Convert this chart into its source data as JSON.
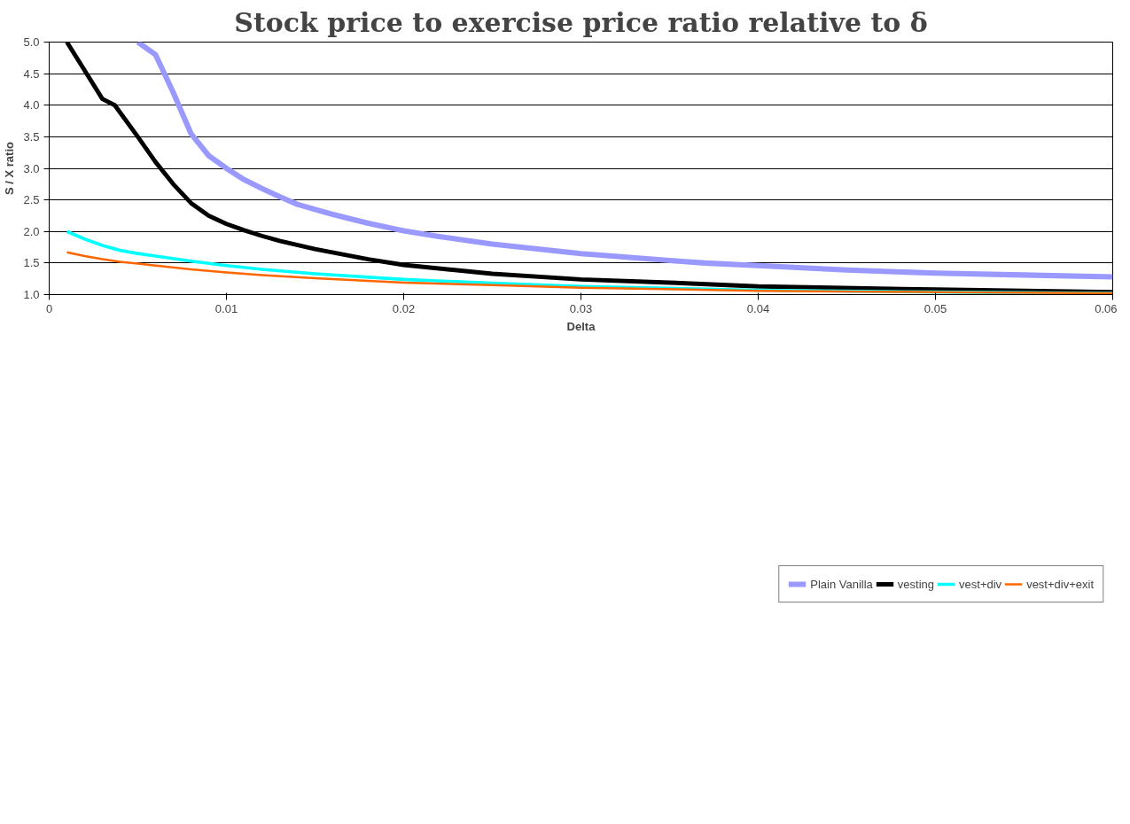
{
  "chart_data": {
    "type": "line",
    "title": "Stock price to exercise price ratio relative to δ",
    "xlabel": "Delta",
    "ylabel": "S / X ratio",
    "xlim": [
      0,
      0.06
    ],
    "xticks": [
      0,
      0.01,
      0.02,
      0.03,
      0.04,
      0.05,
      0.06
    ],
    "ylim": [
      1.0,
      5.0
    ],
    "yticks": [
      {
        "value": 1.0,
        "label": "1.0"
      },
      1.5,
      {
        "value": 2.0,
        "label": "2.0"
      },
      2.5,
      {
        "value": 3.0,
        "label": "3.0"
      },
      3.5,
      {
        "value": 4.0,
        "label": "4.0"
      },
      4.5,
      {
        "value": 5.0,
        "label": "5.0"
      }
    ],
    "grid": "y",
    "legend": "bottom",
    "marker": "none",
    "line_style": "solid",
    "series": [
      {
        "name": "Plain Vanilla",
        "color": "#9999ff",
        "x": [
          0.005,
          0.006,
          0.007,
          0.008,
          0.009,
          0.01,
          0.011,
          0.012,
          0.013,
          0.014,
          0.015,
          0.016,
          0.018,
          0.02,
          0.022,
          0.025,
          0.03,
          0.035,
          0.037,
          0.04,
          0.045,
          0.05,
          0.055,
          0.06
        ],
        "values": [
          5.0,
          4.8,
          4.2,
          3.55,
          3.2,
          3.0,
          2.82,
          2.68,
          2.55,
          2.43,
          2.35,
          2.27,
          2.13,
          2.01,
          1.92,
          1.8,
          1.65,
          1.54,
          1.5,
          1.46,
          1.39,
          1.34,
          1.31,
          1.28
        ]
      },
      {
        "name": "vesting",
        "color": "#000000",
        "x": [
          0.001,
          0.002,
          0.003,
          0.0037,
          0.005,
          0.006,
          0.007,
          0.008,
          0.009,
          0.01,
          0.011,
          0.012,
          0.013,
          0.015,
          0.018,
          0.02,
          0.025,
          0.03,
          0.035,
          0.04,
          0.05,
          0.06
        ],
        "values": [
          5.0,
          4.55,
          4.1,
          4.0,
          3.5,
          3.1,
          2.75,
          2.45,
          2.25,
          2.12,
          2.02,
          1.93,
          1.85,
          1.72,
          1.56,
          1.47,
          1.33,
          1.24,
          1.19,
          1.13,
          1.08,
          1.04
        ]
      },
      {
        "name": "vest+div",
        "color": "#00ffff",
        "x": [
          0.001,
          0.002,
          0.003,
          0.004,
          0.005,
          0.006,
          0.008,
          0.01,
          0.012,
          0.015,
          0.02,
          0.025,
          0.03,
          0.04,
          0.05,
          0.06
        ],
        "values": [
          2.0,
          1.88,
          1.78,
          1.7,
          1.65,
          1.61,
          1.53,
          1.46,
          1.4,
          1.33,
          1.24,
          1.18,
          1.13,
          1.07,
          1.04,
          1.02
        ]
      },
      {
        "name": "vest+div+exit",
        "color": "#ff6600",
        "x": [
          0.001,
          0.002,
          0.003,
          0.004,
          0.005,
          0.006,
          0.008,
          0.01,
          0.012,
          0.015,
          0.02,
          0.025,
          0.03,
          0.04,
          0.05,
          0.06
        ],
        "values": [
          1.67,
          1.61,
          1.56,
          1.52,
          1.49,
          1.46,
          1.4,
          1.35,
          1.31,
          1.26,
          1.19,
          1.15,
          1.11,
          1.06,
          1.04,
          1.02
        ]
      }
    ]
  }
}
